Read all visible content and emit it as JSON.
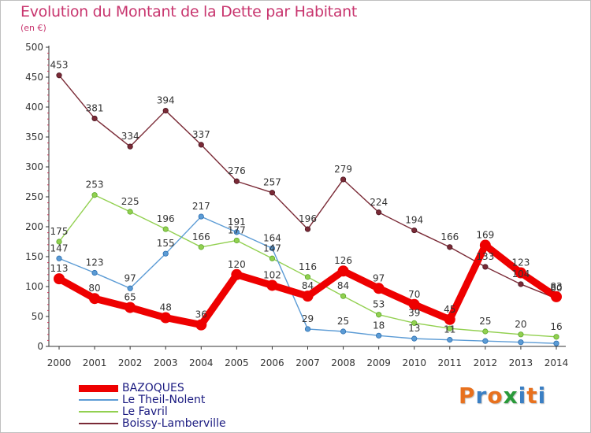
{
  "title": "Evolution du Montant de la Dette par Habitant",
  "subtitle": "(en €)",
  "brand": {
    "text": "Proxiti",
    "colors": [
      "#e8711e",
      "#3a7fc4",
      "#e8711e",
      "#2a9a3a",
      "#3a7fc4",
      "#e8711e",
      "#3a7fc4"
    ]
  },
  "chart_data": {
    "type": "line",
    "title": "Evolution du Montant de la Dette par Habitant",
    "subtitle": "(en €)",
    "x": [
      "2000",
      "2001",
      "2002",
      "2003",
      "2004",
      "2005",
      "2006",
      "2007",
      "2008",
      "2009",
      "2010",
      "2011",
      "2012",
      "2013",
      "2014"
    ],
    "ylim": [
      0,
      500
    ],
    "yticks": [
      0,
      50,
      100,
      150,
      200,
      250,
      300,
      350,
      400,
      450,
      500
    ],
    "grid": false,
    "legend_position": "bottom-left",
    "series": [
      {
        "name": "BAZOQUES",
        "color": "#ee0000",
        "values": [
          113,
          80,
          65,
          48,
          36,
          120,
          102,
          84,
          126,
          97,
          70,
          45,
          169,
          123,
          83
        ]
      },
      {
        "name": "Le Theil-Nolent",
        "color": "#5b9bd5",
        "values": [
          147,
          123,
          97,
          155,
          217,
          191,
          164,
          29,
          25,
          18,
          13,
          11,
          9,
          7,
          5
        ]
      },
      {
        "name": "Le Favril",
        "color": "#92d050",
        "values": [
          175,
          253,
          225,
          196,
          166,
          177,
          147,
          116,
          84,
          53,
          39,
          30,
          25,
          20,
          16
        ]
      },
      {
        "name": "Boissy-Lamberville",
        "color": "#7a2a36",
        "values": [
          453,
          381,
          334,
          394,
          337,
          276,
          257,
          196,
          279,
          224,
          194,
          166,
          133,
          104,
          80
        ]
      }
    ],
    "data_labels": [
      {
        "series": 0,
        "labels": [
          "113",
          "80",
          "65",
          "48",
          "36",
          "120",
          "102",
          "84",
          "126",
          "97",
          "70",
          "45",
          "169",
          "123",
          "83"
        ]
      },
      {
        "series": 1,
        "labels": [
          "147",
          "123",
          "97",
          "155",
          "217",
          "191",
          "164",
          "29",
          "25",
          "18",
          "13",
          "11",
          "",
          "",
          ""
        ]
      },
      {
        "series": 2,
        "labels": [
          "175",
          "253",
          "225",
          "196",
          "166",
          "177",
          "147",
          "116",
          "84",
          "53",
          "39",
          "",
          "25",
          "20",
          "16"
        ]
      },
      {
        "series": 3,
        "labels": [
          "453",
          "381",
          "334",
          "394",
          "337",
          "276",
          "257",
          "196",
          "279",
          "224",
          "194",
          "166",
          "133",
          "104",
          "80"
        ]
      }
    ]
  }
}
